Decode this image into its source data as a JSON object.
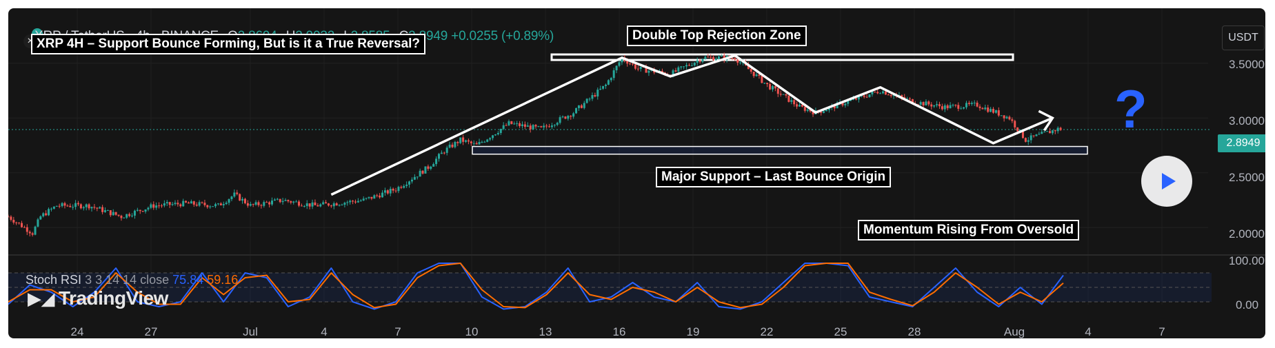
{
  "header": {
    "symbol": "XRP / TetherUS · 4h · BINANCE",
    "open_label": "O",
    "open": "2.8694",
    "high_label": "H",
    "high": "2.9032",
    "low_label": "L",
    "low": "2.8585",
    "close_label": "C",
    "close": "2.8949",
    "change": "+0.0255 (+0.89%)"
  },
  "currency": "USDT",
  "last_price": "2.8949",
  "annotations": {
    "title": "XRP 4H – Support Bounce Forming, But is it a True Reversal?",
    "double_top": "Double Top Rejection Zone",
    "support": "Major Support – Last Bounce Origin",
    "momentum": "Momentum Rising From Oversold",
    "question": "?"
  },
  "oscillator": {
    "name": "Stoch RSI",
    "params": "3 3 14 14 close",
    "k_value": "75.84",
    "d_value": "59.16"
  },
  "brand": "TradingView",
  "colors": {
    "up": "#26a69a",
    "down": "#ef5350",
    "accent": "#2962ff",
    "k_line": "#2962ff",
    "d_line": "#ff6d00"
  },
  "chart_data": [
    {
      "type": "candlestick",
      "title": "",
      "ylim": [
        1.8,
        3.75
      ],
      "y_ticks": [
        "3.5000",
        "3.0000",
        "2.5000",
        "2.0000"
      ],
      "x_ticks": [
        "24",
        "27",
        "Jul",
        "4",
        "7",
        "10",
        "13",
        "16",
        "19",
        "22",
        "25",
        "28",
        "Aug",
        "4",
        "7"
      ],
      "approx_close_path": [
        [
          0,
          2.1
        ],
        [
          6,
          2.0
        ],
        [
          9,
          1.95
        ],
        [
          12,
          2.1
        ],
        [
          18,
          2.2
        ],
        [
          30,
          2.2
        ],
        [
          42,
          2.1
        ],
        [
          54,
          2.2
        ],
        [
          66,
          2.22
        ],
        [
          78,
          2.2
        ],
        [
          84,
          2.3
        ],
        [
          90,
          2.2
        ],
        [
          102,
          2.25
        ],
        [
          114,
          2.2
        ],
        [
          132,
          2.25
        ],
        [
          144,
          2.35
        ],
        [
          156,
          2.55
        ],
        [
          162,
          2.7
        ],
        [
          168,
          2.8
        ],
        [
          174,
          2.75
        ],
        [
          186,
          2.95
        ],
        [
          198,
          2.9
        ],
        [
          210,
          3.05
        ],
        [
          222,
          3.3
        ],
        [
          228,
          3.55
        ],
        [
          234,
          3.45
        ],
        [
          246,
          3.4
        ],
        [
          258,
          3.55
        ],
        [
          270,
          3.55
        ],
        [
          282,
          3.3
        ],
        [
          294,
          3.1
        ],
        [
          300,
          3.05
        ],
        [
          312,
          3.15
        ],
        [
          324,
          3.25
        ],
        [
          336,
          3.15
        ],
        [
          348,
          3.1
        ],
        [
          360,
          3.12
        ],
        [
          372,
          3.0
        ],
        [
          378,
          2.8
        ],
        [
          384,
          2.85
        ],
        [
          390,
          2.9
        ]
      ],
      "drawings": {
        "double_top_zone": [
          3.53,
          3.58
        ],
        "support_zone": [
          2.67,
          2.74
        ],
        "trend_path": [
          [
            120,
            2.3
          ],
          [
            228,
            3.55
          ],
          [
            246,
            3.38
          ],
          [
            270,
            3.57
          ],
          [
            300,
            3.05
          ],
          [
            324,
            3.28
          ],
          [
            366,
            2.77
          ],
          [
            388,
            3.0
          ]
        ]
      }
    },
    {
      "type": "line",
      "name": "Stoch RSI",
      "ylim": [
        0,
        100
      ],
      "y_ticks": [
        "100.00",
        "0.00"
      ],
      "levels": [
        80,
        50,
        20
      ],
      "series": [
        {
          "name": "K",
          "values": [
            15,
            55,
            40,
            10,
            40,
            90,
            20,
            10,
            20,
            80,
            20,
            80,
            70,
            10,
            30,
            90,
            20,
            5,
            20,
            80,
            100,
            100,
            30,
            5,
            10,
            40,
            90,
            20,
            30,
            60,
            30,
            20,
            60,
            10,
            5,
            20,
            60,
            100,
            100,
            95,
            30,
            20,
            10,
            50,
            90,
            40,
            10,
            50,
            15,
            75
          ]
        },
        {
          "name": "D",
          "values": [
            20,
            45,
            45,
            20,
            30,
            80,
            40,
            15,
            15,
            70,
            35,
            70,
            75,
            20,
            25,
            80,
            35,
            8,
            15,
            70,
            95,
            100,
            45,
            10,
            8,
            35,
            80,
            35,
            25,
            50,
            40,
            20,
            50,
            20,
            8,
            15,
            50,
            95,
            100,
            100,
            40,
            25,
            12,
            40,
            80,
            50,
            15,
            40,
            20,
            59
          ]
        }
      ]
    }
  ]
}
